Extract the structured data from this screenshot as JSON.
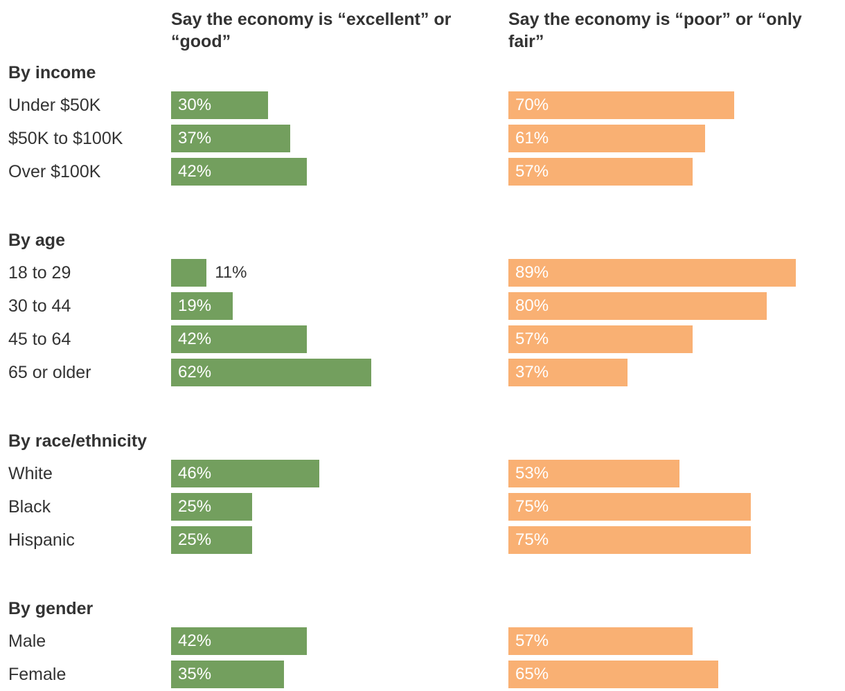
{
  "colors": {
    "good": "#739f5e",
    "poor": "#f9b073",
    "text": "#333333",
    "inside_label": "#ffffff"
  },
  "chart_data": {
    "type": "bar",
    "orientation": "horizontal",
    "title": "",
    "xlim": [
      0,
      100
    ],
    "series": [
      {
        "key": "good",
        "name": "Say the economy is “excellent” or “good”"
      },
      {
        "key": "poor",
        "name": "Say the economy is “poor” or “only fair”"
      }
    ],
    "groups": [
      {
        "title": "By income",
        "rows": [
          {
            "label": "Under $50K",
            "good": 30,
            "poor": 70,
            "good_text": "30%",
            "poor_text": "70%"
          },
          {
            "label": "$50K to $100K",
            "good": 37,
            "poor": 61,
            "good_text": "37%",
            "poor_text": "61%"
          },
          {
            "label": "Over $100K",
            "good": 42,
            "poor": 57,
            "good_text": "42%",
            "poor_text": "57%"
          }
        ]
      },
      {
        "title": "By age",
        "rows": [
          {
            "label": "18 to 29",
            "good": 11,
            "poor": 89,
            "good_text": "11%",
            "poor_text": "89%"
          },
          {
            "label": "30 to 44",
            "good": 19,
            "poor": 80,
            "good_text": "19%",
            "poor_text": "80%"
          },
          {
            "label": "45 to 64",
            "good": 42,
            "poor": 57,
            "good_text": "42%",
            "poor_text": "57%"
          },
          {
            "label": "65 or older",
            "good": 62,
            "poor": 37,
            "good_text": "62%",
            "poor_text": "37%"
          }
        ]
      },
      {
        "title": "By race/ethnicity",
        "rows": [
          {
            "label": "White",
            "good": 46,
            "poor": 53,
            "good_text": "46%",
            "poor_text": "53%"
          },
          {
            "label": "Black",
            "good": 25,
            "poor": 75,
            "good_text": "25%",
            "poor_text": "75%"
          },
          {
            "label": "Hispanic",
            "good": 25,
            "poor": 75,
            "good_text": "25%",
            "poor_text": "75%"
          }
        ]
      },
      {
        "title": "By gender",
        "rows": [
          {
            "label": "Male",
            "good": 42,
            "poor": 57,
            "good_text": "42%",
            "poor_text": "57%"
          },
          {
            "label": "Female",
            "good": 35,
            "poor": 65,
            "good_text": "35%",
            "poor_text": "65%"
          }
        ]
      }
    ]
  }
}
